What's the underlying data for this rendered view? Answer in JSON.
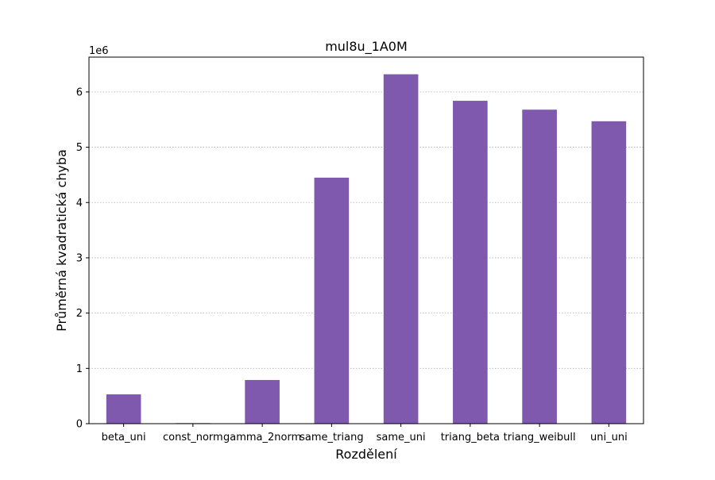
{
  "chart_data": {
    "type": "bar",
    "title": "mul8u_1A0M",
    "xlabel": "Rozdělení",
    "ylabel": "Průměrná kvadratická chyba",
    "y_offset_label": "1e6",
    "categories": [
      "beta_uni",
      "const_norm",
      "gamma_2norm",
      "same_triang",
      "same_uni",
      "triang_beta",
      "triang_weibull",
      "uni_uni"
    ],
    "values": [
      530000,
      10000,
      790000,
      4450000,
      6320000,
      5840000,
      5680000,
      5470000
    ],
    "ylim": [
      0,
      6630000
    ],
    "yticks": [
      0,
      1000000,
      2000000,
      3000000,
      4000000,
      5000000,
      6000000
    ],
    "ytick_labels": [
      "0",
      "1",
      "2",
      "3",
      "4",
      "5",
      "6"
    ],
    "grid": "y-dotted",
    "bar_color": "#7f59ae"
  }
}
